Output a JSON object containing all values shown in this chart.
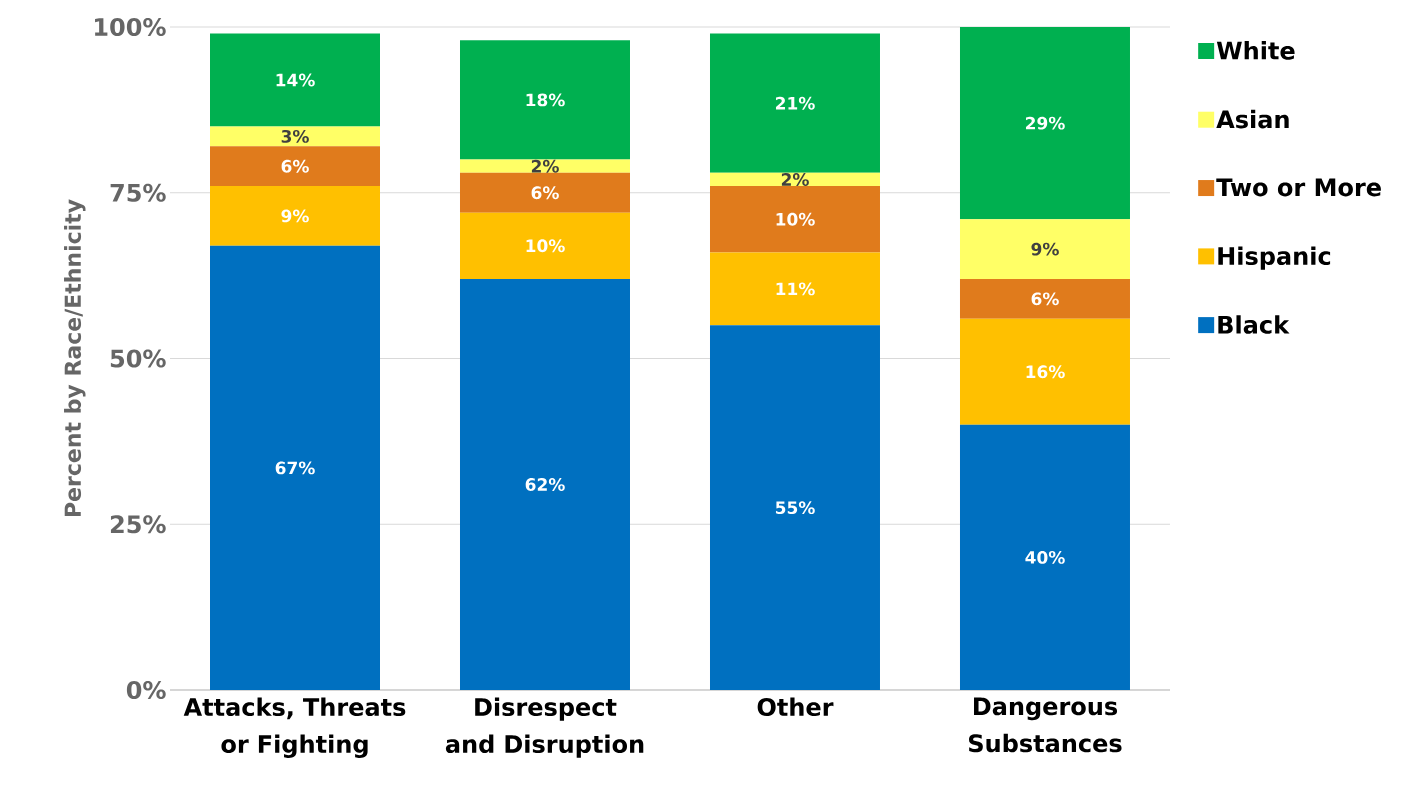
{
  "chart_data": {
    "type": "bar",
    "stacked": true,
    "ylabel": "Percent by Race/Ethnicity",
    "categories": [
      "Attacks, Threats or Fighting",
      "Disrespect and Disruption",
      "Other",
      "Dangerous Substances"
    ],
    "series": [
      {
        "name": "Black",
        "color": "#0070c0",
        "values": [
          67,
          62,
          55,
          40
        ],
        "value_labels": [
          "67%",
          "62%",
          "55%",
          "40%"
        ]
      },
      {
        "name": "Hispanic",
        "color": "#ffc000",
        "values": [
          9,
          10,
          11,
          16
        ],
        "value_labels": [
          "9%",
          "10%",
          "11%",
          "16%"
        ]
      },
      {
        "name": "Two or More",
        "color": "#e07b1c",
        "values": [
          6,
          6,
          10,
          6
        ],
        "value_labels": [
          "6%",
          "6%",
          "10%",
          "6%"
        ]
      },
      {
        "name": "Asian",
        "color": "#ffff66",
        "values": [
          3,
          2,
          2,
          9
        ],
        "value_labels": [
          "3%",
          "2%",
          "2%",
          "9%"
        ]
      },
      {
        "name": "White",
        "color": "#00b050",
        "values": [
          14,
          18,
          21,
          29
        ],
        "value_labels": [
          "14%",
          "18%",
          "21%",
          "29%"
        ]
      }
    ],
    "ylim": [
      0,
      100
    ],
    "yticks": [
      {
        "value": 0,
        "label": "0%"
      },
      {
        "value": 25,
        "label": "25%"
      },
      {
        "value": 50,
        "label": "50%"
      },
      {
        "value": 75,
        "label": "75%"
      },
      {
        "value": 100,
        "label": "100%"
      }
    ],
    "grid": "y",
    "legend": "right"
  }
}
